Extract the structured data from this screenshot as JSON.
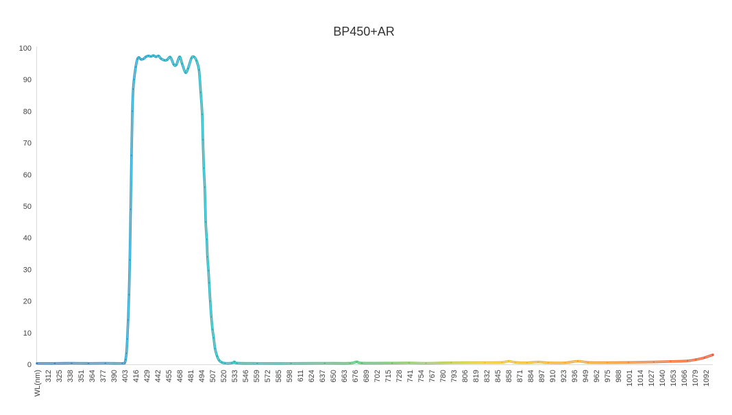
{
  "chart_data": {
    "type": "line",
    "title": "BP450+AR",
    "xlabel": "WL(nm)",
    "ylabel": "",
    "x_tick_labels": [
      "WL(nm)",
      "312",
      "325",
      "338",
      "351",
      "364",
      "377",
      "390",
      "403",
      "416",
      "429",
      "442",
      "455",
      "468",
      "481",
      "494",
      "507",
      "520",
      "533",
      "546",
      "559",
      "572",
      "585",
      "598",
      "611",
      "624",
      "637",
      "650",
      "663",
      "676",
      "689",
      "702",
      "715",
      "728",
      "741",
      "754",
      "767",
      "780",
      "793",
      "806",
      "819",
      "832",
      "845",
      "858",
      "871",
      "884",
      "897",
      "910",
      "923",
      "936",
      "949",
      "962",
      "975",
      "988",
      "1001",
      "1014",
      "1027",
      "1040",
      "1053",
      "1066",
      "1079",
      "1092"
    ],
    "xlim": [
      299,
      1100
    ],
    "ylim": [
      0,
      100
    ],
    "y_ticks": [
      0,
      10,
      20,
      30,
      40,
      50,
      60,
      70,
      80,
      90,
      100
    ],
    "grid": false,
    "legend": "none",
    "line_gradient": [
      "#2f86d6",
      "#2aa9c8",
      "#2cbcb0",
      "#5ec46a",
      "#e9c53a",
      "#f3a03a",
      "#ee5a36"
    ],
    "points": [
      [
        299,
        0.3
      ],
      [
        320,
        0.3
      ],
      [
        340,
        0.35
      ],
      [
        360,
        0.3
      ],
      [
        380,
        0.35
      ],
      [
        400,
        0.3
      ],
      [
        403,
        0.5
      ],
      [
        404,
        1.5
      ],
      [
        405,
        3.5
      ],
      [
        406,
        8
      ],
      [
        407,
        14
      ],
      [
        408,
        22
      ],
      [
        409,
        33
      ],
      [
        410,
        49
      ],
      [
        411,
        66
      ],
      [
        412,
        80
      ],
      [
        413,
        87
      ],
      [
        414,
        90
      ],
      [
        416,
        94
      ],
      [
        418,
        96.5
      ],
      [
        420,
        97
      ],
      [
        422,
        96.4
      ],
      [
        425,
        96.5
      ],
      [
        428,
        97.2
      ],
      [
        431,
        97.5
      ],
      [
        434,
        97.3
      ],
      [
        437,
        97.6
      ],
      [
        440,
        97.2
      ],
      [
        443,
        97.5
      ],
      [
        446,
        96.6
      ],
      [
        450,
        96.1
      ],
      [
        453,
        96.2
      ],
      [
        457,
        97.1
      ],
      [
        461,
        94.8
      ],
      [
        464,
        94.6
      ],
      [
        468,
        97.2
      ],
      [
        471,
        95
      ],
      [
        475,
        92.2
      ],
      [
        478,
        93.5
      ],
      [
        482,
        96.8
      ],
      [
        485,
        97.2
      ],
      [
        488,
        96
      ],
      [
        491,
        93
      ],
      [
        493,
        86
      ],
      [
        494.8,
        79
      ],
      [
        495.6,
        71
      ],
      [
        496.7,
        62
      ],
      [
        497.8,
        56
      ],
      [
        498.9,
        45
      ],
      [
        500.2,
        39.5
      ],
      [
        501,
        34
      ],
      [
        502.2,
        29.6
      ],
      [
        503,
        25.8
      ],
      [
        504.3,
        20
      ],
      [
        505.6,
        15
      ],
      [
        507,
        11
      ],
      [
        508.4,
        8.4
      ],
      [
        510,
        5
      ],
      [
        512.4,
        2.6
      ],
      [
        515,
        1.2
      ],
      [
        518,
        0.6
      ],
      [
        522,
        0.35
      ],
      [
        530,
        0.4
      ],
      [
        533,
        0.8
      ],
      [
        536,
        0.4
      ],
      [
        560,
        0.3
      ],
      [
        600,
        0.3
      ],
      [
        640,
        0.35
      ],
      [
        670,
        0.35
      ],
      [
        678,
        0.8
      ],
      [
        684,
        0.4
      ],
      [
        720,
        0.4
      ],
      [
        740,
        0.45
      ],
      [
        760,
        0.35
      ],
      [
        790,
        0.5
      ],
      [
        830,
        0.55
      ],
      [
        850,
        0.6
      ],
      [
        858,
        1
      ],
      [
        866,
        0.6
      ],
      [
        880,
        0.5
      ],
      [
        893,
        0.75
      ],
      [
        905,
        0.5
      ],
      [
        925,
        0.5
      ],
      [
        940,
        1
      ],
      [
        952,
        0.6
      ],
      [
        975,
        0.55
      ],
      [
        1000,
        0.6
      ],
      [
        1030,
        0.75
      ],
      [
        1050,
        0.9
      ],
      [
        1070,
        1.1
      ],
      [
        1080,
        1.5
      ],
      [
        1090,
        2.1
      ],
      [
        1100,
        3
      ]
    ]
  }
}
